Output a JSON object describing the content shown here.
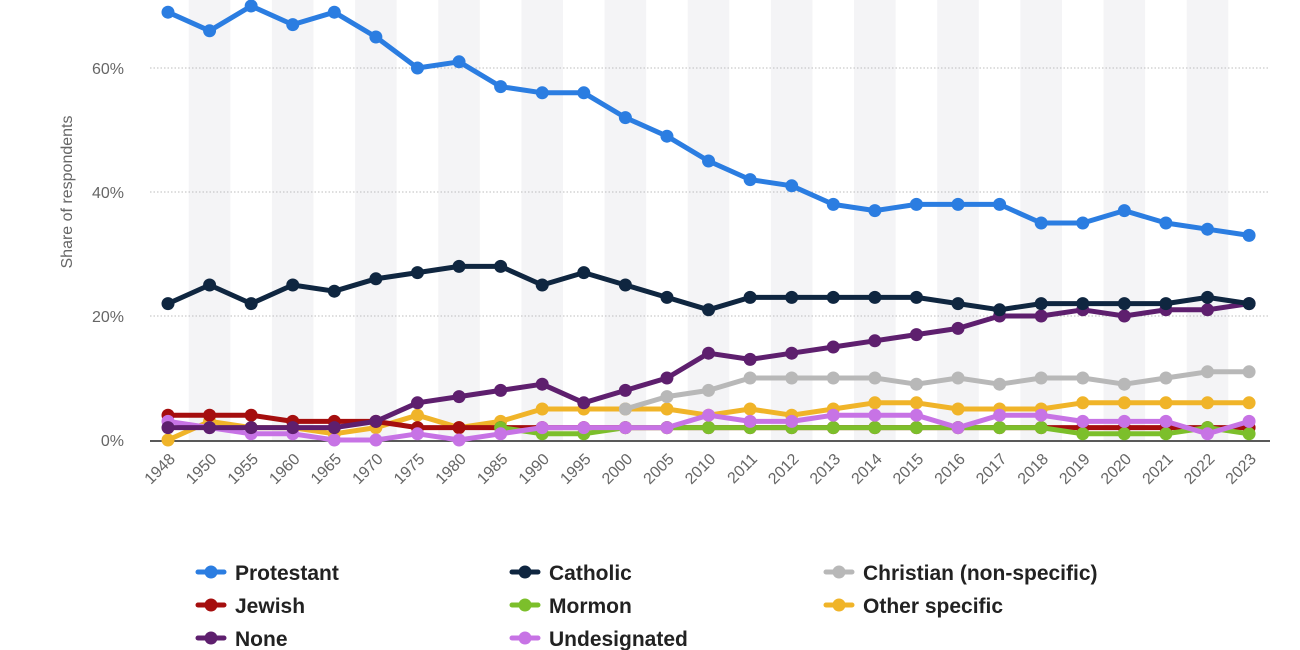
{
  "chart_data": {
    "type": "line",
    "title": "",
    "xlabel": "",
    "ylabel": "Share of respondents",
    "ylim": [
      0,
      70
    ],
    "yticks": [
      0,
      20,
      40,
      60
    ],
    "ytick_labels": [
      "0%",
      "20%",
      "40%",
      "60%"
    ],
    "categories": [
      "1948",
      "1950",
      "1955",
      "1960",
      "1965",
      "1970",
      "1975",
      "1980",
      "1985",
      "1990",
      "1995",
      "2000",
      "2005",
      "2010",
      "2011",
      "2012",
      "2013",
      "2014",
      "2015",
      "2016",
      "2017",
      "2018",
      "2019",
      "2020",
      "2021",
      "2022",
      "2023"
    ],
    "series": [
      {
        "key": "other_specific",
        "name": "Other specific",
        "color": "#f0b429",
        "values": [
          0,
          3,
          2,
          2,
          1,
          2,
          4,
          2,
          3,
          5,
          5,
          5,
          5,
          4,
          5,
          4,
          5,
          6,
          6,
          5,
          5,
          5,
          6,
          6,
          6,
          6,
          6
        ]
      },
      {
        "key": "christian",
        "name": "Christian (non-specific)",
        "color": "#b8b8b8",
        "values": [
          null,
          null,
          null,
          null,
          null,
          null,
          null,
          null,
          null,
          null,
          null,
          5,
          7,
          8,
          10,
          10,
          10,
          10,
          9,
          10,
          9,
          10,
          10,
          9,
          10,
          11,
          11
        ]
      },
      {
        "key": "jewish",
        "name": "Jewish",
        "color": "#a50e0e",
        "values": [
          4,
          4,
          4,
          3,
          3,
          3,
          2,
          2,
          2,
          2,
          2,
          2,
          2,
          2,
          2,
          2,
          2,
          2,
          2,
          2,
          2,
          2,
          2,
          2,
          2,
          2,
          2
        ]
      },
      {
        "key": "mormon",
        "name": "Mormon",
        "color": "#7cbf2b",
        "values": [
          null,
          null,
          null,
          null,
          null,
          null,
          null,
          null,
          2,
          1,
          1,
          2,
          2,
          2,
          2,
          2,
          2,
          2,
          2,
          2,
          2,
          2,
          1,
          1,
          1,
          2,
          1
        ]
      },
      {
        "key": "undesignated",
        "name": "Undesignated",
        "color": "#c773e5",
        "values": [
          3,
          2,
          1,
          1,
          0,
          0,
          1,
          0,
          1,
          2,
          2,
          2,
          2,
          4,
          3,
          3,
          4,
          4,
          4,
          2,
          4,
          4,
          3,
          3,
          3,
          1,
          3
        ]
      },
      {
        "key": "none",
        "name": "None",
        "color": "#5e1f6e",
        "values": [
          2,
          2,
          2,
          2,
          2,
          3,
          6,
          7,
          8,
          9,
          6,
          8,
          10,
          14,
          13,
          14,
          15,
          16,
          17,
          18,
          20,
          20,
          21,
          20,
          21,
          21,
          22
        ]
      },
      {
        "key": "catholic",
        "name": "Catholic",
        "color": "#0f2640",
        "values": [
          22,
          25,
          22,
          25,
          24,
          26,
          27,
          28,
          28,
          25,
          27,
          25,
          23,
          21,
          23,
          23,
          23,
          23,
          23,
          22,
          21,
          22,
          22,
          22,
          22,
          23,
          22
        ]
      },
      {
        "key": "protestant",
        "name": "Protestant",
        "color": "#2b7de1",
        "values": [
          69,
          66,
          70,
          67,
          69,
          65,
          60,
          61,
          57,
          56,
          56,
          52,
          49,
          45,
          42,
          41,
          38,
          37,
          38,
          38,
          38,
          35,
          35,
          37,
          35,
          34,
          33
        ]
      }
    ],
    "legend": [
      {
        "key": "protestant",
        "label": "Protestant",
        "color": "#2b7de1"
      },
      {
        "key": "catholic",
        "label": "Catholic",
        "color": "#0f2640"
      },
      {
        "key": "christian",
        "label": "Christian (non-specific)",
        "color": "#b8b8b8"
      },
      {
        "key": "jewish",
        "label": "Jewish",
        "color": "#a50e0e"
      },
      {
        "key": "mormon",
        "label": "Mormon",
        "color": "#7cbf2b"
      },
      {
        "key": "other_specific",
        "label": "Other specific",
        "color": "#f0b429"
      },
      {
        "key": "none",
        "label": "None",
        "color": "#5e1f6e"
      },
      {
        "key": "undesignated",
        "label": "Undesignated",
        "color": "#c773e5"
      }
    ],
    "legend_position": "bottom",
    "grid": true
  }
}
